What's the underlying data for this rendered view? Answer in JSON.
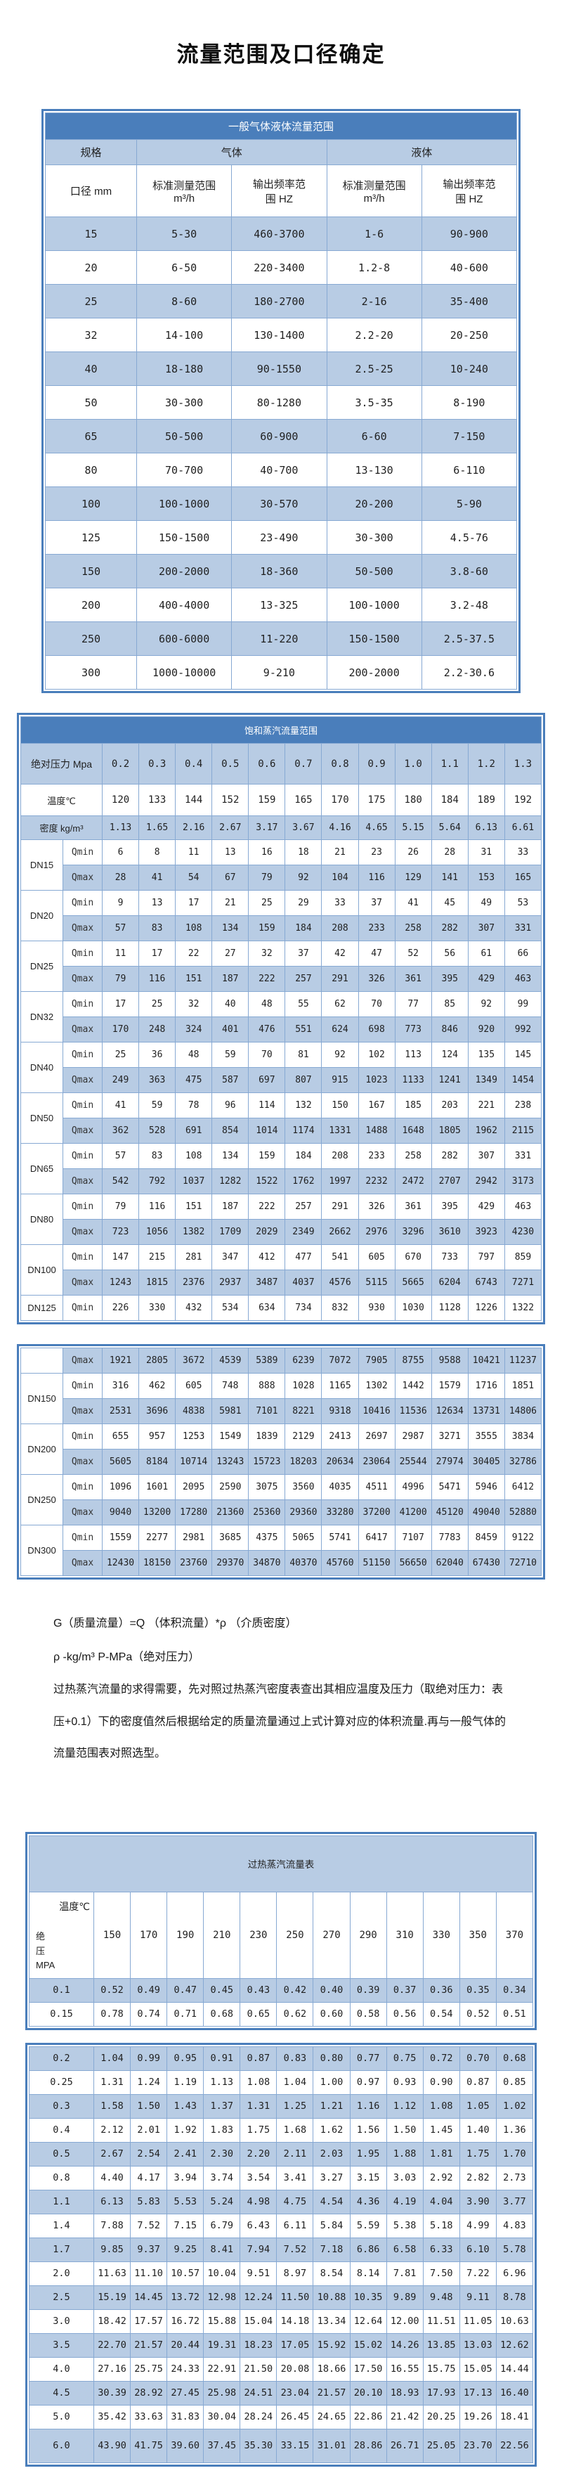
{
  "page_title": "流量范围及口径确定",
  "colors": {
    "header_blue": "#4a7ebb",
    "row_blue": "#b8cce4",
    "grid_blue": "#87a9d3",
    "title_text": "#ffffff"
  },
  "table1": {
    "title": "一般气体液体流量范围",
    "header": {
      "spec": "规格",
      "gas": "气体",
      "liquid": "液体",
      "diameter": "口径 mm",
      "std_col": "标准测量范围\nm³/h",
      "freq_col": "输出频率范\n围 HZ"
    },
    "rows": [
      {
        "dn": "15",
        "gas_range": "5-30",
        "gas_freq": "460-3700",
        "liq_range": "1-6",
        "liq_freq": "90-900"
      },
      {
        "dn": "20",
        "gas_range": "6-50",
        "gas_freq": "220-3400",
        "liq_range": "1.2-8",
        "liq_freq": "40-600"
      },
      {
        "dn": "25",
        "gas_range": "8-60",
        "gas_freq": "180-2700",
        "liq_range": "2-16",
        "liq_freq": "35-400"
      },
      {
        "dn": "32",
        "gas_range": "14-100",
        "gas_freq": "130-1400",
        "liq_range": "2.2-20",
        "liq_freq": "20-250"
      },
      {
        "dn": "40",
        "gas_range": "18-180",
        "gas_freq": "90-1550",
        "liq_range": "2.5-25",
        "liq_freq": "10-240"
      },
      {
        "dn": "50",
        "gas_range": "30-300",
        "gas_freq": "80-1280",
        "liq_range": "3.5-35",
        "liq_freq": "8-190"
      },
      {
        "dn": "65",
        "gas_range": "50-500",
        "gas_freq": "60-900",
        "liq_range": "6-60",
        "liq_freq": "7-150"
      },
      {
        "dn": "80",
        "gas_range": "70-700",
        "gas_freq": "40-700",
        "liq_range": "13-130",
        "liq_freq": "6-110"
      },
      {
        "dn": "100",
        "gas_range": "100-1000",
        "gas_freq": "30-570",
        "liq_range": "20-200",
        "liq_freq": "5-90"
      },
      {
        "dn": "125",
        "gas_range": "150-1500",
        "gas_freq": "23-490",
        "liq_range": "30-300",
        "liq_freq": "4.5-76"
      },
      {
        "dn": "150",
        "gas_range": "200-2000",
        "gas_freq": "18-360",
        "liq_range": "50-500",
        "liq_freq": "3.8-60"
      },
      {
        "dn": "200",
        "gas_range": "400-4000",
        "gas_freq": "13-325",
        "liq_range": "100-1000",
        "liq_freq": "3.2-48"
      },
      {
        "dn": "250",
        "gas_range": "600-6000",
        "gas_freq": "11-220",
        "liq_range": "150-1500",
        "liq_freq": "2.5-37.5"
      },
      {
        "dn": "300",
        "gas_range": "1000-10000",
        "gas_freq": "9-210",
        "liq_range": "200-2000",
        "liq_freq": "2.2-30.6"
      }
    ]
  },
  "table2": {
    "title": "饱和蒸汽流量范围",
    "pressure_label": "绝对压力 Mpa",
    "pressures": [
      "0.2",
      "0.3",
      "0.4",
      "0.5",
      "0.6",
      "0.7",
      "0.8",
      "0.9",
      "1.0",
      "1.1",
      "1.2",
      "1.3"
    ],
    "temp_label": "温度℃",
    "temps": [
      "120",
      "133",
      "144",
      "152",
      "159",
      "165",
      "170",
      "175",
      "180",
      "184",
      "189",
      "192"
    ],
    "density_label": "密度 kg/m³",
    "densities": [
      "1.13",
      "1.65",
      "2.16",
      "2.67",
      "3.17",
      "3.67",
      "4.16",
      "4.65",
      "5.15",
      "5.64",
      "6.13",
      "6.61"
    ],
    "qmin_label": "Qmin",
    "qmax_label": "Qmax",
    "rows_box1": [
      {
        "dn": "DN15",
        "qmin": [
          "6",
          "8",
          "11",
          "13",
          "16",
          "18",
          "21",
          "23",
          "26",
          "28",
          "31",
          "33"
        ],
        "qmax": [
          "28",
          "41",
          "54",
          "67",
          "79",
          "92",
          "104",
          "116",
          "129",
          "141",
          "153",
          "165"
        ]
      },
      {
        "dn": "DN20",
        "qmin": [
          "9",
          "13",
          "17",
          "21",
          "25",
          "29",
          "33",
          "37",
          "41",
          "45",
          "49",
          "53"
        ],
        "qmax": [
          "57",
          "83",
          "108",
          "134",
          "159",
          "184",
          "208",
          "233",
          "258",
          "282",
          "307",
          "331"
        ]
      },
      {
        "dn": "DN25",
        "qmin": [
          "11",
          "17",
          "22",
          "27",
          "32",
          "37",
          "42",
          "47",
          "52",
          "56",
          "61",
          "66"
        ],
        "qmax": [
          "79",
          "116",
          "151",
          "187",
          "222",
          "257",
          "291",
          "326",
          "361",
          "395",
          "429",
          "463"
        ]
      },
      {
        "dn": "DN32",
        "qmin": [
          "17",
          "25",
          "32",
          "40",
          "48",
          "55",
          "62",
          "70",
          "77",
          "85",
          "92",
          "99"
        ],
        "qmax": [
          "170",
          "248",
          "324",
          "401",
          "476",
          "551",
          "624",
          "698",
          "773",
          "846",
          "920",
          "992"
        ]
      },
      {
        "dn": "DN40",
        "qmin": [
          "25",
          "36",
          "48",
          "59",
          "70",
          "81",
          "92",
          "102",
          "113",
          "124",
          "135",
          "145"
        ],
        "qmax": [
          "249",
          "363",
          "475",
          "587",
          "697",
          "807",
          "915",
          "1023",
          "1133",
          "1241",
          "1349",
          "1454"
        ]
      },
      {
        "dn": "DN50",
        "qmin": [
          "41",
          "59",
          "78",
          "96",
          "114",
          "132",
          "150",
          "167",
          "185",
          "203",
          "221",
          "238"
        ],
        "qmax": [
          "362",
          "528",
          "691",
          "854",
          "1014",
          "1174",
          "1331",
          "1488",
          "1648",
          "1805",
          "1962",
          "2115"
        ]
      },
      {
        "dn": "DN65",
        "qmin": [
          "57",
          "83",
          "108",
          "134",
          "159",
          "184",
          "208",
          "233",
          "258",
          "282",
          "307",
          "331"
        ],
        "qmax": [
          "542",
          "792",
          "1037",
          "1282",
          "1522",
          "1762",
          "1997",
          "2232",
          "2472",
          "2707",
          "2942",
          "3173"
        ]
      },
      {
        "dn": "DN80",
        "qmin": [
          "79",
          "116",
          "151",
          "187",
          "222",
          "257",
          "291",
          "326",
          "361",
          "395",
          "429",
          "463"
        ],
        "qmax": [
          "723",
          "1056",
          "1382",
          "1709",
          "2029",
          "2349",
          "2662",
          "2976",
          "3296",
          "3610",
          "3923",
          "4230"
        ]
      },
      {
        "dn": "DN100",
        "qmin": [
          "147",
          "215",
          "281",
          "347",
          "412",
          "477",
          "541",
          "605",
          "670",
          "733",
          "797",
          "859"
        ],
        "qmax": [
          "1243",
          "1815",
          "2376",
          "2937",
          "3487",
          "4037",
          "4576",
          "5115",
          "5665",
          "6204",
          "6743",
          "7271"
        ]
      },
      {
        "dn": "DN125",
        "qmin": [
          "226",
          "330",
          "432",
          "534",
          "634",
          "734",
          "832",
          "930",
          "1030",
          "1128",
          "1226",
          "1322"
        ]
      }
    ],
    "box2": {
      "orphan_qmax": [
        "1921",
        "2805",
        "3672",
        "4539",
        "5389",
        "6239",
        "7072",
        "7905",
        "8755",
        "9588",
        "10421",
        "11237"
      ],
      "rows": [
        {
          "dn": "DN150",
          "qmin": [
            "316",
            "462",
            "605",
            "748",
            "888",
            "1028",
            "1165",
            "1302",
            "1442",
            "1579",
            "1716",
            "1851"
          ],
          "qmax": [
            "2531",
            "3696",
            "4838",
            "5981",
            "7101",
            "8221",
            "9318",
            "10416",
            "11536",
            "12634",
            "13731",
            "14806"
          ]
        },
        {
          "dn": "DN200",
          "qmin": [
            "655",
            "957",
            "1253",
            "1549",
            "1839",
            "2129",
            "2413",
            "2697",
            "2987",
            "3271",
            "3555",
            "3834"
          ],
          "qmax": [
            "5605",
            "8184",
            "10714",
            "13243",
            "15723",
            "18203",
            "20634",
            "23064",
            "25544",
            "27974",
            "30405",
            "32786"
          ]
        },
        {
          "dn": "DN250",
          "qmin": [
            "1096",
            "1601",
            "2095",
            "2590",
            "3075",
            "3560",
            "4035",
            "4511",
            "4996",
            "5471",
            "5946",
            "6412"
          ],
          "qmax": [
            "9040",
            "13200",
            "17280",
            "21360",
            "25360",
            "29360",
            "33280",
            "37200",
            "41200",
            "45120",
            "49040",
            "52880"
          ]
        },
        {
          "dn": "DN300",
          "qmin": [
            "1559",
            "2277",
            "2981",
            "3685",
            "4375",
            "5065",
            "5741",
            "6417",
            "7107",
            "7783",
            "8459",
            "9122"
          ],
          "qmax": [
            "12430",
            "18150",
            "23760",
            "29370",
            "34870",
            "40370",
            "45760",
            "51150",
            "56650",
            "62040",
            "67430",
            "72710"
          ]
        }
      ]
    }
  },
  "notes": {
    "line1": "G（质量流量）=Q （体积流量）*ρ （介质密度）",
    "line2": "ρ -kg/m³ P-MPa（绝对压力）",
    "para": "过热蒸汽流量的求得需要，先对照过热蒸汽密度表查出其相应温度及压力（取绝对压力：表压+0.1）下的密度值然后根据给定的质量流量通过上式计算对应的体积流量.再与一般气体的流量范围表对照选型。"
  },
  "table3": {
    "title": "过热蒸汽流量表",
    "corner_top": "温度℃",
    "corner_bottom": "绝\n压\nMPA",
    "temperatures": [
      "150",
      "170",
      "190",
      "210",
      "230",
      "250",
      "270",
      "290",
      "310",
      "330",
      "350",
      "370"
    ],
    "block1": [
      {
        "p": "0.1",
        "values": [
          "0.52",
          "0.49",
          "0.47",
          "0.45",
          "0.43",
          "0.42",
          "0.40",
          "0.39",
          "0.37",
          "0.36",
          "0.35",
          "0.34"
        ]
      },
      {
        "p": "0.15",
        "values": [
          "0.78",
          "0.74",
          "0.71",
          "0.68",
          "0.65",
          "0.62",
          "0.60",
          "0.58",
          "0.56",
          "0.54",
          "0.52",
          "0.51"
        ]
      }
    ],
    "block2": [
      {
        "p": "0.2",
        "values": [
          "1.04",
          "0.99",
          "0.95",
          "0.91",
          "0.87",
          "0.83",
          "0.80",
          "0.77",
          "0.75",
          "0.72",
          "0.70",
          "0.68"
        ]
      },
      {
        "p": "0.25",
        "values": [
          "1.31",
          "1.24",
          "1.19",
          "1.13",
          "1.08",
          "1.04",
          "1.00",
          "0.97",
          "0.93",
          "0.90",
          "0.87",
          "0.85"
        ]
      },
      {
        "p": "0.3",
        "values": [
          "1.58",
          "1.50",
          "1.43",
          "1.37",
          "1.31",
          "1.25",
          "1.21",
          "1.16",
          "1.12",
          "1.08",
          "1.05",
          "1.02"
        ]
      },
      {
        "p": "0.4",
        "values": [
          "2.12",
          "2.01",
          "1.92",
          "1.83",
          "1.75",
          "1.68",
          "1.62",
          "1.56",
          "1.50",
          "1.45",
          "1.40",
          "1.36"
        ]
      },
      {
        "p": "0.5",
        "values": [
          "2.67",
          "2.54",
          "2.41",
          "2.30",
          "2.20",
          "2.11",
          "2.03",
          "1.95",
          "1.88",
          "1.81",
          "1.75",
          "1.70"
        ]
      },
      {
        "p": "0.8",
        "values": [
          "4.40",
          "4.17",
          "3.94",
          "3.74",
          "3.54",
          "3.41",
          "3.27",
          "3.15",
          "3.03",
          "2.92",
          "2.82",
          "2.73"
        ]
      },
      {
        "p": "1.1",
        "values": [
          "6.13",
          "5.83",
          "5.53",
          "5.24",
          "4.98",
          "4.75",
          "4.54",
          "4.36",
          "4.19",
          "4.04",
          "3.90",
          "3.77"
        ]
      },
      {
        "p": "1.4",
        "values": [
          "7.88",
          "7.52",
          "7.15",
          "6.79",
          "6.43",
          "6.11",
          "5.84",
          "5.59",
          "5.38",
          "5.18",
          "4.99",
          "4.83"
        ]
      },
      {
        "p": "1.7",
        "values": [
          "9.85",
          "9.37",
          "9.25",
          "8.41",
          "7.94",
          "7.52",
          "7.18",
          "6.86",
          "6.58",
          "6.33",
          "6.10",
          "5.78"
        ]
      },
      {
        "p": "2.0",
        "values": [
          "11.63",
          "11.10",
          "10.57",
          "10.04",
          "9.51",
          "8.97",
          "8.54",
          "8.14",
          "7.81",
          "7.50",
          "7.22",
          "6.96"
        ]
      },
      {
        "p": "2.5",
        "values": [
          "15.19",
          "14.45",
          "13.72",
          "12.98",
          "12.24",
          "11.50",
          "10.88",
          "10.35",
          "9.89",
          "9.48",
          "9.11",
          "8.78"
        ]
      },
      {
        "p": "3.0",
        "values": [
          "18.42",
          "17.57",
          "16.72",
          "15.88",
          "15.04",
          "14.18",
          "13.34",
          "12.64",
          "12.00",
          "11.51",
          "11.05",
          "10.63"
        ]
      },
      {
        "p": "3.5",
        "values": [
          "22.70",
          "21.57",
          "20.44",
          "19.31",
          "18.23",
          "17.05",
          "15.92",
          "15.02",
          "14.26",
          "13.85",
          "13.03",
          "12.62"
        ]
      },
      {
        "p": "4.0",
        "values": [
          "27.16",
          "25.75",
          "24.33",
          "22.91",
          "21.50",
          "20.08",
          "18.66",
          "17.50",
          "16.55",
          "15.75",
          "15.05",
          "14.44"
        ]
      },
      {
        "p": "4.5",
        "values": [
          "30.39",
          "28.92",
          "27.45",
          "25.98",
          "24.51",
          "23.04",
          "21.57",
          "20.10",
          "18.93",
          "17.93",
          "17.13",
          "16.40"
        ]
      },
      {
        "p": "5.0",
        "values": [
          "35.42",
          "33.63",
          "31.83",
          "30.04",
          "28.24",
          "26.45",
          "24.65",
          "22.86",
          "21.42",
          "20.25",
          "19.26",
          "18.41"
        ]
      },
      {
        "p": "6.0",
        "values": [
          "43.90",
          "41.75",
          "39.60",
          "37.45",
          "35.30",
          "33.15",
          "31.01",
          "28.86",
          "26.71",
          "25.05",
          "23.70",
          "22.56"
        ]
      }
    ]
  }
}
